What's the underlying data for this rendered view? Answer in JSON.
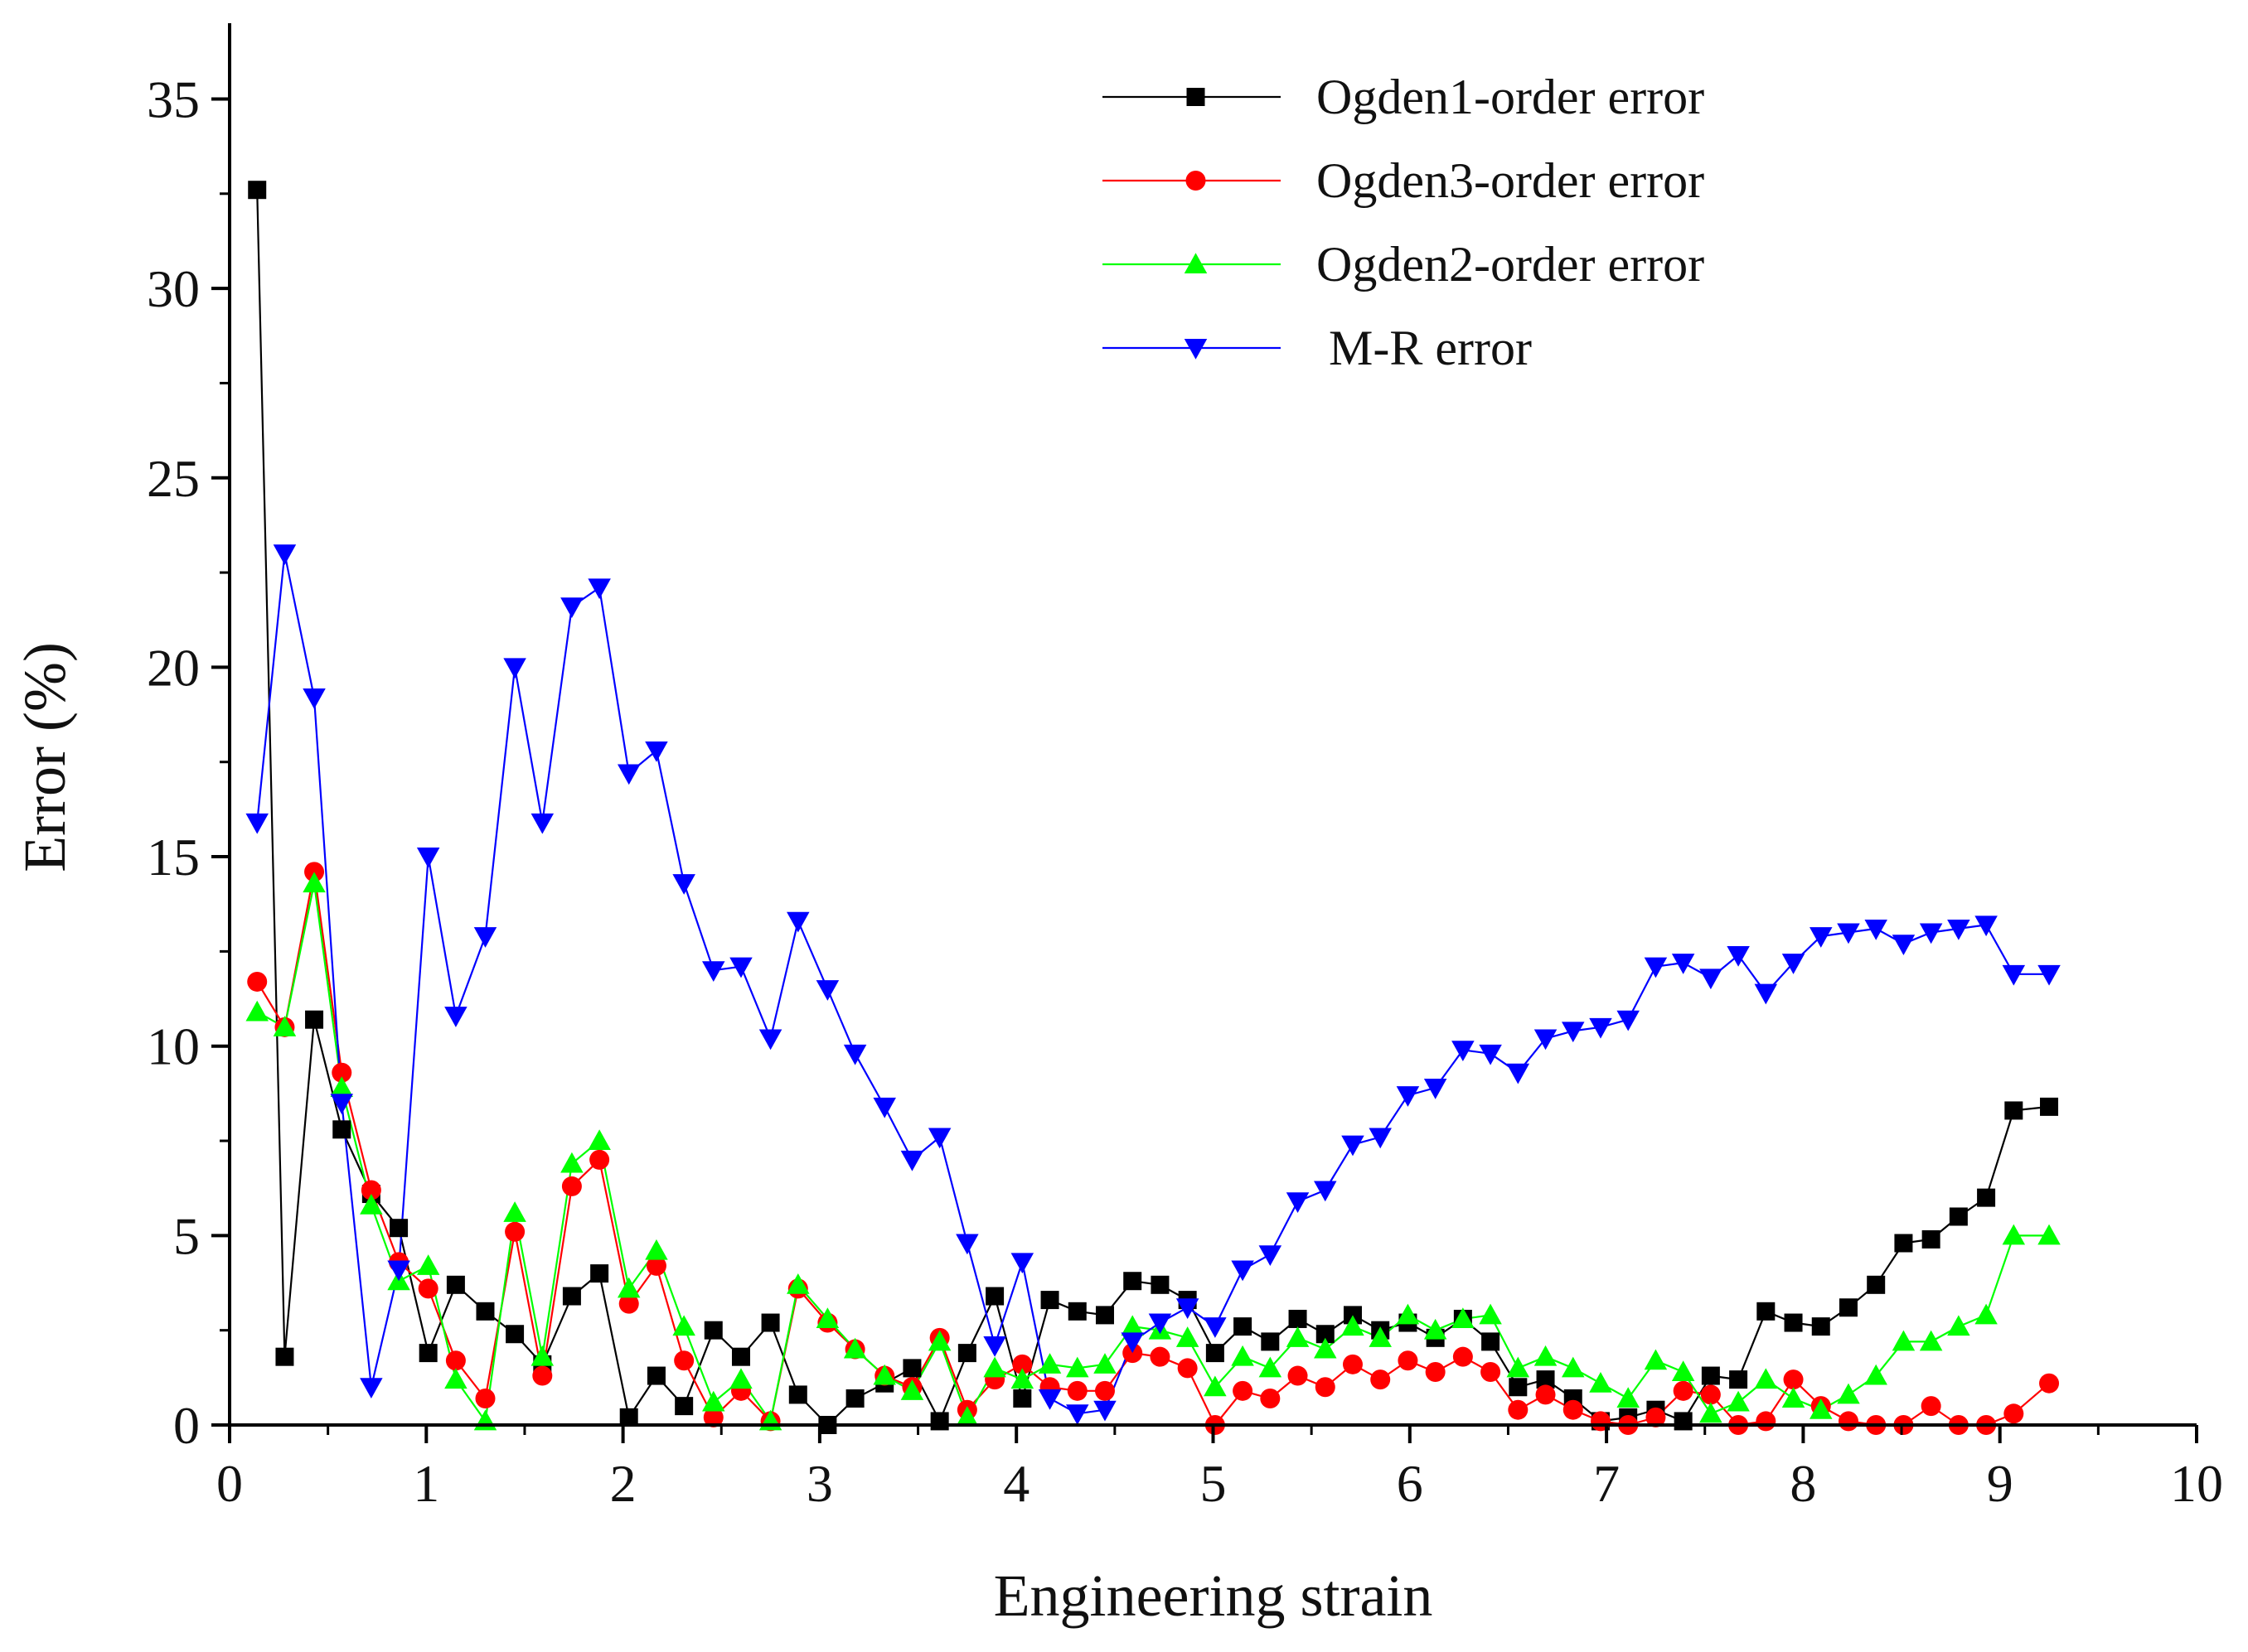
{
  "chart_data": {
    "type": "line",
    "xlabel": "Engineering strain",
    "ylabel": "Error (%)",
    "xlim": [
      0,
      10
    ],
    "ylim": [
      0,
      37
    ],
    "xticks": [
      0,
      1,
      2,
      3,
      4,
      5,
      6,
      7,
      8,
      9,
      10
    ],
    "yticks": [
      0,
      5,
      10,
      15,
      20,
      25,
      30,
      35
    ],
    "grid": false,
    "legend_position": "top-right",
    "series": [
      {
        "name": "Ogden1-order error",
        "color": "#000000",
        "marker": "square",
        "x": [
          0.14,
          0.28,
          0.43,
          0.57,
          0.72,
          0.86,
          1.01,
          1.15,
          1.3,
          1.45,
          1.59,
          1.74,
          1.88,
          2.03,
          2.17,
          2.31,
          2.46,
          2.6,
          2.75,
          2.89,
          3.04,
          3.18,
          3.33,
          3.47,
          3.61,
          3.75,
          3.89,
          4.03,
          4.17,
          4.31,
          4.45,
          4.59,
          4.73,
          4.87,
          5.01,
          5.15,
          5.29,
          5.43,
          5.57,
          5.71,
          5.85,
          5.99,
          6.13,
          6.27,
          6.41,
          6.55,
          6.69,
          6.83,
          6.97,
          7.11,
          7.25,
          7.39,
          7.53,
          7.67,
          7.81,
          7.95,
          8.09,
          8.23,
          8.37,
          8.51,
          8.65,
          8.79,
          8.93,
          9.07,
          9.25
        ],
        "y": [
          32.6,
          1.8,
          10.7,
          7.8,
          6.1,
          5.2,
          1.9,
          3.7,
          3.0,
          2.4,
          1.6,
          3.4,
          4.0,
          0.2,
          1.3,
          0.5,
          2.5,
          1.8,
          2.7,
          0.8,
          0.0,
          0.7,
          1.1,
          1.5,
          0.1,
          1.9,
          3.4,
          0.7,
          3.3,
          3.0,
          2.9,
          3.8,
          3.7,
          3.3,
          1.9,
          2.6,
          2.2,
          2.8,
          2.4,
          2.9,
          2.5,
          2.7,
          2.3,
          2.8,
          2.2,
          1.0,
          1.2,
          0.7,
          0.1,
          0.2,
          0.4,
          0.1,
          1.3,
          1.2,
          3.0,
          2.7,
          2.6,
          3.1,
          3.7,
          4.8,
          4.9,
          5.5,
          6.0,
          8.3,
          8.4
        ]
      },
      {
        "name": "Ogden3-order error",
        "color": "#ff0000",
        "marker": "circle",
        "x": [
          0.14,
          0.28,
          0.43,
          0.57,
          0.72,
          0.86,
          1.01,
          1.15,
          1.3,
          1.45,
          1.59,
          1.74,
          1.88,
          2.03,
          2.17,
          2.31,
          2.46,
          2.6,
          2.75,
          2.89,
          3.04,
          3.18,
          3.33,
          3.47,
          3.61,
          3.75,
          3.89,
          4.03,
          4.17,
          4.31,
          4.45,
          4.59,
          4.73,
          4.87,
          5.01,
          5.15,
          5.29,
          5.43,
          5.57,
          5.71,
          5.85,
          5.99,
          6.13,
          6.27,
          6.41,
          6.55,
          6.69,
          6.83,
          6.97,
          7.11,
          7.25,
          7.39,
          7.53,
          7.67,
          7.81,
          7.95,
          8.09,
          8.23,
          8.37,
          8.51,
          8.65,
          8.79,
          8.93,
          9.07,
          9.25
        ],
        "y": [
          11.7,
          10.5,
          14.6,
          9.3,
          6.2,
          4.3,
          3.6,
          1.7,
          0.7,
          5.1,
          1.3,
          6.3,
          7.0,
          3.2,
          4.2,
          1.7,
          0.2,
          0.9,
          0.1,
          3.6,
          2.7,
          2.0,
          1.3,
          1.0,
          2.3,
          0.4,
          1.2,
          1.6,
          1.0,
          0.9,
          0.9,
          1.9,
          1.8,
          1.5,
          0.0,
          0.9,
          0.7,
          1.3,
          1.0,
          1.6,
          1.2,
          1.7,
          1.4,
          1.8,
          1.4,
          0.4,
          0.8,
          0.4,
          0.1,
          0.0,
          0.2,
          0.9,
          0.8,
          0.0,
          0.1,
          1.2,
          0.5,
          0.1,
          0.0,
          0.0,
          0.5,
          0.0,
          0.0,
          0.3,
          1.1
        ]
      },
      {
        "name": "Ogden2-order error",
        "color": "#00ff00",
        "marker": "triangle-up",
        "x": [
          0.14,
          0.28,
          0.43,
          0.57,
          0.72,
          0.86,
          1.01,
          1.15,
          1.3,
          1.45,
          1.59,
          1.74,
          1.88,
          2.03,
          2.17,
          2.31,
          2.46,
          2.6,
          2.75,
          2.89,
          3.04,
          3.18,
          3.33,
          3.47,
          3.61,
          3.75,
          3.89,
          4.03,
          4.17,
          4.31,
          4.45,
          4.59,
          4.73,
          4.87,
          5.01,
          5.15,
          5.29,
          5.43,
          5.57,
          5.71,
          5.85,
          5.99,
          6.13,
          6.27,
          6.41,
          6.55,
          6.69,
          6.83,
          6.97,
          7.11,
          7.25,
          7.39,
          7.53,
          7.67,
          7.81,
          7.95,
          8.09,
          8.23,
          8.37,
          8.51,
          8.65,
          8.79,
          8.93,
          9.07,
          9.25
        ],
        "y": [
          10.9,
          10.5,
          14.3,
          8.9,
          5.8,
          3.8,
          4.2,
          1.2,
          0.1,
          5.6,
          1.8,
          6.9,
          7.5,
          3.6,
          4.6,
          2.6,
          0.6,
          1.2,
          0.1,
          3.7,
          2.8,
          2.0,
          1.3,
          0.9,
          2.2,
          0.2,
          1.5,
          1.2,
          1.6,
          1.5,
          1.6,
          2.6,
          2.5,
          2.3,
          1.0,
          1.8,
          1.5,
          2.3,
          2.0,
          2.6,
          2.3,
          2.9,
          2.5,
          2.8,
          2.9,
          1.5,
          1.8,
          1.5,
          1.1,
          0.7,
          1.7,
          1.4,
          0.3,
          0.6,
          1.2,
          0.7,
          0.4,
          0.8,
          1.3,
          2.2,
          2.2,
          2.6,
          2.9,
          5.0,
          5.0
        ]
      },
      {
        "name": "M-R error",
        "color": "#0000ff",
        "marker": "triangle-down",
        "x": [
          0.14,
          0.28,
          0.43,
          0.57,
          0.72,
          0.86,
          1.01,
          1.15,
          1.3,
          1.45,
          1.59,
          1.74,
          1.88,
          2.03,
          2.17,
          2.31,
          2.46,
          2.6,
          2.75,
          2.89,
          3.04,
          3.18,
          3.33,
          3.47,
          3.61,
          3.75,
          3.89,
          4.03,
          4.17,
          4.31,
          4.45,
          4.59,
          4.73,
          4.87,
          5.01,
          5.15,
          5.29,
          5.43,
          5.57,
          5.71,
          5.85,
          5.99,
          6.13,
          6.27,
          6.41,
          6.55,
          6.69,
          6.83,
          6.97,
          7.11,
          7.25,
          7.39,
          7.53,
          7.67,
          7.81,
          7.95,
          8.09,
          8.23,
          8.37,
          8.51,
          8.65,
          8.79,
          8.93,
          9.07,
          9.25
        ],
        "y": [
          15.9,
          23.0,
          19.2,
          8.5,
          1.0,
          4.1,
          15.0,
          10.8,
          12.9,
          20.0,
          15.9,
          21.6,
          22.1,
          17.2,
          17.8,
          14.3,
          12.0,
          12.1,
          10.2,
          13.3,
          11.5,
          9.8,
          8.4,
          7.0,
          7.6,
          4.8,
          2.1,
          4.3,
          0.7,
          0.3,
          0.4,
          2.2,
          2.7,
          3.1,
          2.6,
          4.1,
          4.5,
          5.9,
          6.2,
          7.4,
          7.6,
          8.7,
          8.9,
          9.9,
          9.8,
          9.3,
          10.2,
          10.4,
          10.5,
          10.7,
          12.1,
          12.2,
          11.8,
          12.4,
          11.4,
          12.2,
          12.9,
          13.0,
          13.1,
          12.7,
          13.0,
          13.1,
          13.2,
          11.9,
          11.9
        ]
      }
    ]
  }
}
